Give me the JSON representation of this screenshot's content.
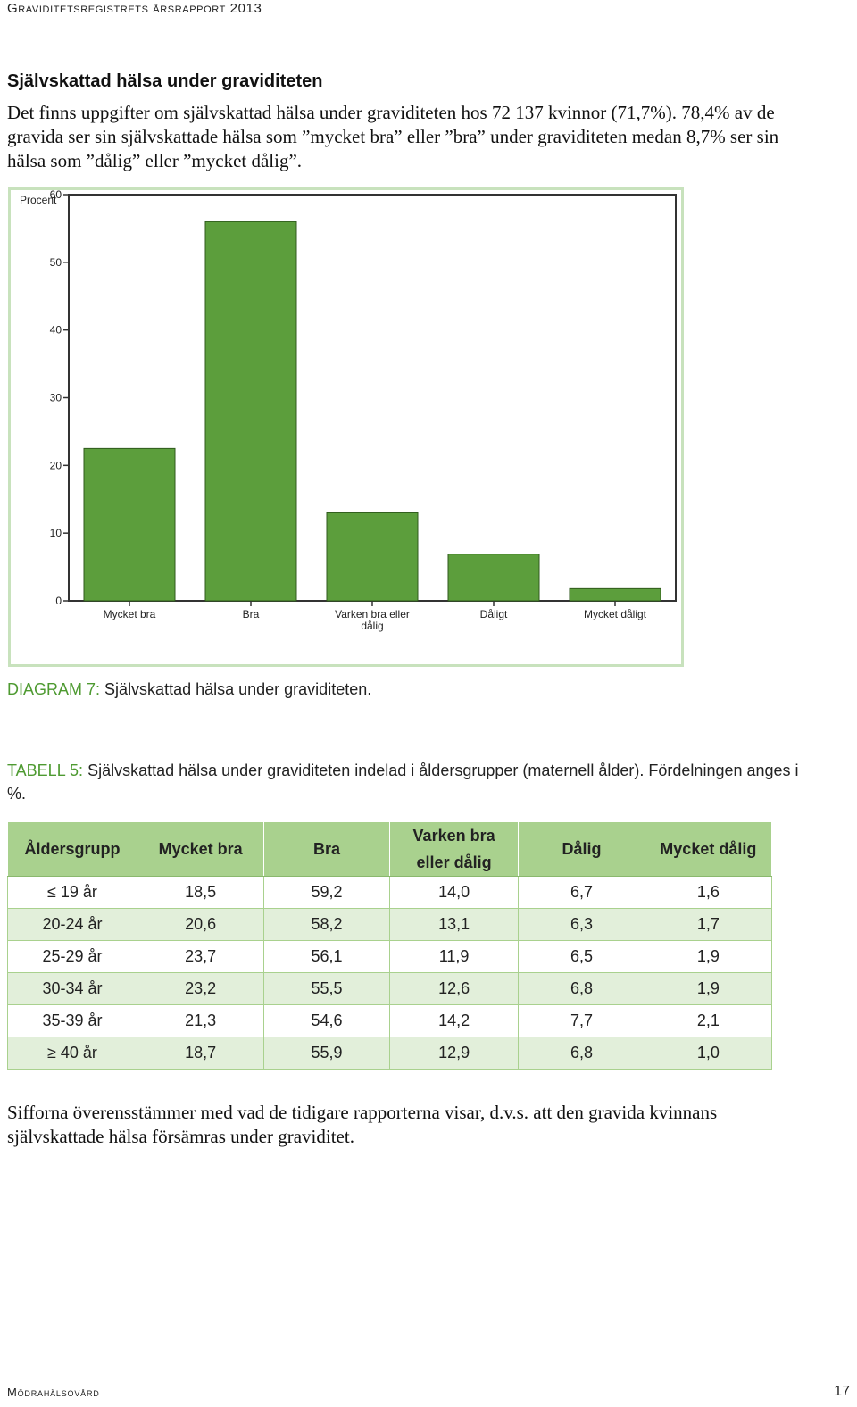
{
  "page": {
    "header": "Graviditetsregistrets årsrapport 2013",
    "footer_left": "Mödrahälsovård",
    "page_number": "17"
  },
  "section": {
    "title": "Självskattad hälsa under graviditeten",
    "intro": "Det finns uppgifter om självskattad hälsa under graviditeten hos 72 137 kvinnor (71,7%). 78,4% av de gravida ser sin självskattade hälsa som ”mycket bra” eller ”bra” under graviditeten medan 8,7% ser sin hälsa som ”dålig” eller ”mycket dålig”."
  },
  "chart_data": {
    "type": "bar",
    "title": "",
    "ylabel": "Procent",
    "xlabel": "",
    "ylim": [
      0,
      60
    ],
    "yticks": [
      "0",
      "10",
      "20",
      "30",
      "40",
      "50",
      "60"
    ],
    "categories": [
      "Mycket bra",
      "Bra",
      "Varken bra eller dålig",
      "Dåligt",
      "Mycket dåligt"
    ],
    "values": [
      22.5,
      56.0,
      13.0,
      6.9,
      1.8
    ],
    "bar_color": "#5c9e3c",
    "grid": false
  },
  "diagram_caption": {
    "label": "DIAGRAM 7:",
    "text": "Självskattad hälsa under graviditeten."
  },
  "table_caption": {
    "label": "TABELL 5:",
    "text": "Självskattad hälsa under graviditeten indelad i åldersgrupper (maternell ålder). Fördelningen anges i %."
  },
  "table": {
    "headers": [
      "Åldersgrupp",
      "Mycket bra",
      "Bra",
      "Varken bra eller dålig",
      "Dålig",
      "Mycket dålig"
    ],
    "rows": [
      [
        "≤ 19 år",
        "18,5",
        "59,2",
        "14,0",
        "6,7",
        "1,6"
      ],
      [
        "20-24 år",
        "20,6",
        "58,2",
        "13,1",
        "6,3",
        "1,7"
      ],
      [
        "25-29 år",
        "23,7",
        "56,1",
        "11,9",
        "6,5",
        "1,9"
      ],
      [
        "30-34 år",
        "23,2",
        "55,5",
        "12,6",
        "6,8",
        "1,9"
      ],
      [
        "35-39 år",
        "21,3",
        "54,6",
        "14,2",
        "7,7",
        "2,1"
      ],
      [
        "≥ 40 år",
        "18,7",
        "55,9",
        "12,9",
        "6,8",
        "1,0"
      ]
    ]
  },
  "conclusion": "Sifforna överensstämmer med vad de tidigare rapporterna visar, d.v.s. att den gravida kvinnans självskattade hälsa försämras under graviditet."
}
